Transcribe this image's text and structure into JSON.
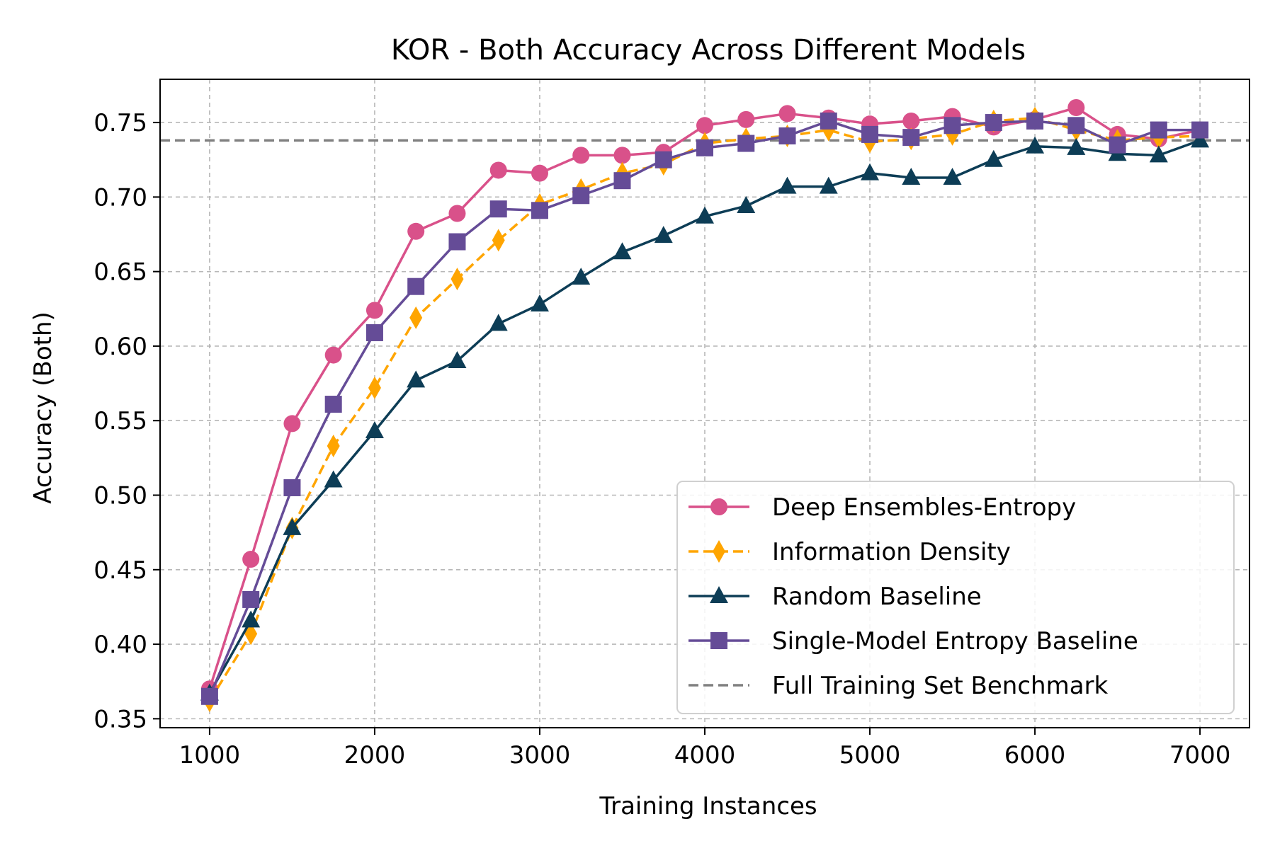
{
  "chart_data": {
    "type": "line",
    "title": "KOR - Both Accuracy Across Different Models",
    "xlabel": "Training Instances",
    "ylabel": "Accuracy (Both)",
    "xlim": [
      700,
      7300
    ],
    "ylim": [
      0.344,
      0.779
    ],
    "xticks": [
      1000,
      2000,
      3000,
      4000,
      5000,
      6000,
      7000
    ],
    "xtick_labels": [
      "1000",
      "2000",
      "3000",
      "4000",
      "5000",
      "6000",
      "7000"
    ],
    "yticks": [
      0.35,
      0.4,
      0.45,
      0.5,
      0.55,
      0.6,
      0.65,
      0.7,
      0.75
    ],
    "ytick_labels": [
      "0.35",
      "0.40",
      "0.45",
      "0.50",
      "0.55",
      "0.60",
      "0.65",
      "0.70",
      "0.75"
    ],
    "grid": true,
    "legend_position": "lower-right",
    "x": [
      1000,
      1250,
      1500,
      1750,
      2000,
      2250,
      2500,
      2750,
      3000,
      3250,
      3500,
      3750,
      4000,
      4250,
      4500,
      4750,
      5000,
      5250,
      5500,
      5750,
      6000,
      6250,
      6500,
      6750,
      7000
    ],
    "series": [
      {
        "name": "Deep Ensembles-Entropy",
        "color": "#d9518a",
        "marker": "circle",
        "dash": "solid",
        "values": [
          0.37,
          0.457,
          0.548,
          0.594,
          0.624,
          0.677,
          0.689,
          0.718,
          0.716,
          0.728,
          0.728,
          0.73,
          0.748,
          0.752,
          0.756,
          0.753,
          0.749,
          0.751,
          0.754,
          0.747,
          0.752,
          0.76,
          0.742,
          0.739,
          0.745
        ]
      },
      {
        "name": "Information Density",
        "color": "#ffa500",
        "marker": "diamond",
        "dash": "dashed",
        "values": [
          0.362,
          0.407,
          0.478,
          0.533,
          0.572,
          0.619,
          0.645,
          0.671,
          0.695,
          0.705,
          0.716,
          0.722,
          0.736,
          0.739,
          0.741,
          0.745,
          0.737,
          0.739,
          0.742,
          0.751,
          0.753,
          0.745,
          0.738,
          0.74,
          0.741
        ]
      },
      {
        "name": "Random Baseline",
        "color": "#0d3d56",
        "marker": "triangle",
        "dash": "solid",
        "values": [
          0.367,
          0.416,
          0.478,
          0.51,
          0.543,
          0.577,
          0.59,
          0.615,
          0.628,
          0.646,
          0.663,
          0.674,
          0.687,
          0.694,
          0.707,
          0.707,
          0.716,
          0.713,
          0.713,
          0.725,
          0.734,
          0.733,
          0.729,
          0.728,
          0.738
        ]
      },
      {
        "name": "Single-Model Entropy Baseline",
        "color": "#654c97",
        "marker": "square",
        "dash": "solid",
        "values": [
          0.365,
          0.43,
          0.505,
          0.561,
          0.609,
          0.64,
          0.67,
          0.692,
          0.691,
          0.701,
          0.711,
          0.725,
          0.733,
          0.736,
          0.741,
          0.751,
          0.742,
          0.74,
          0.748,
          0.75,
          0.751,
          0.748,
          0.735,
          0.745,
          0.745
        ]
      },
      {
        "name": "Full Training Set Benchmark",
        "color": "#808080",
        "marker": "none",
        "dash": "dashed",
        "hline": 0.738
      }
    ]
  }
}
